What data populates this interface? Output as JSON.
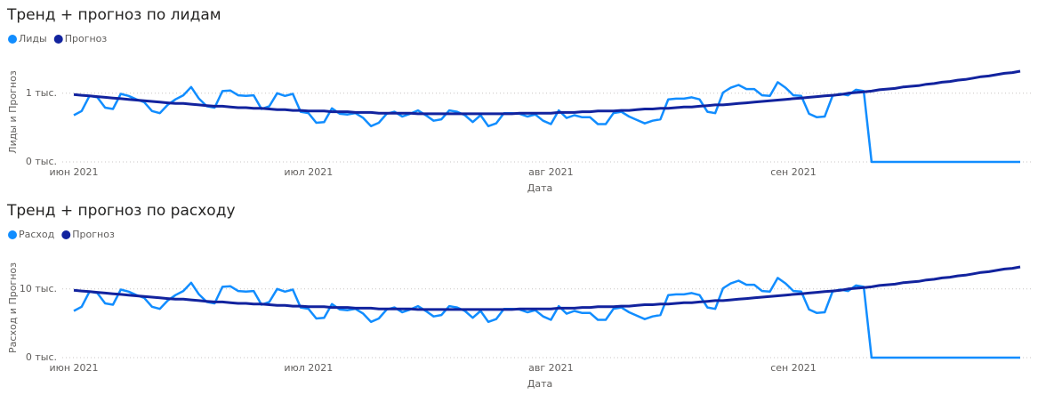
{
  "chart_data": [
    {
      "type": "line",
      "title": "Тренд + прогноз по лидам",
      "xlabel": "Дата",
      "ylabel": "Лиды и Прогноз",
      "categories": [
        "июн 2021",
        null,
        null,
        null,
        null,
        null,
        null,
        null,
        null,
        null,
        null,
        null,
        null,
        null,
        null,
        null,
        null,
        null,
        null,
        null,
        null,
        null,
        null,
        null,
        null,
        null,
        null,
        null,
        null,
        null,
        "июл 2021",
        null,
        null,
        null,
        null,
        null,
        null,
        null,
        null,
        null,
        null,
        null,
        null,
        null,
        null,
        null,
        null,
        null,
        null,
        null,
        null,
        null,
        null,
        null,
        null,
        null,
        null,
        null,
        null,
        null,
        null,
        "авг 2021",
        null,
        null,
        null,
        null,
        null,
        null,
        null,
        null,
        null,
        null,
        null,
        null,
        null,
        null,
        null,
        null,
        null,
        null,
        null,
        null,
        null,
        null,
        null,
        null,
        null,
        null,
        null,
        null,
        null,
        null,
        "сен 2021",
        null,
        null,
        null,
        null,
        null,
        null,
        null,
        null,
        null,
        null,
        null,
        null,
        null,
        null,
        null,
        null,
        null,
        null,
        null,
        null,
        null,
        null,
        null,
        null,
        null,
        null,
        null,
        null,
        null
      ],
      "series": [
        {
          "name": "Лиды",
          "color": "#118DFF",
          "values": [
            0.68,
            0.74,
            0.96,
            0.94,
            0.79,
            0.77,
            0.99,
            0.96,
            0.91,
            0.87,
            0.74,
            0.71,
            0.83,
            0.91,
            0.97,
            1.09,
            0.92,
            0.81,
            0.79,
            1.03,
            1.04,
            0.97,
            0.96,
            0.97,
            0.77,
            0.81,
            1,
            0.96,
            0.99,
            0.73,
            0.71,
            0.57,
            0.58,
            0.78,
            0.7,
            0.69,
            0.71,
            0.64,
            0.52,
            0.57,
            0.7,
            0.73,
            0.66,
            0.7,
            0.75,
            0.68,
            0.6,
            0.62,
            0.75,
            0.73,
            0.68,
            0.58,
            0.68,
            0.52,
            0.56,
            0.71,
            0.71,
            0.7,
            0.66,
            0.69,
            0.6,
            0.55,
            0.75,
            0.64,
            0.68,
            0.65,
            0.65,
            0.55,
            0.55,
            0.71,
            0.73,
            0.66,
            0.61,
            0.56,
            0.6,
            0.62,
            0.91,
            0.92,
            0.92,
            0.94,
            0.91,
            0.73,
            0.71,
            1.01,
            1.08,
            1.12,
            1.06,
            1.06,
            0.97,
            0.96,
            1.16,
            1.08,
            0.97,
            0.96,
            0.7,
            0.65,
            0.66,
            0.96,
            0.99,
            0.97,
            1.05,
            1.03,
            0,
            0,
            0,
            0,
            0,
            0,
            0,
            0,
            0,
            0,
            0,
            0,
            0,
            0,
            0,
            0,
            0,
            0,
            0,
            0
          ]
        },
        {
          "name": "Прогноз",
          "color": "#12239E",
          "values": [
            0.98,
            0.97,
            0.96,
            0.95,
            0.94,
            0.93,
            0.92,
            0.91,
            0.9,
            0.89,
            0.88,
            0.87,
            0.86,
            0.85,
            0.85,
            0.84,
            0.83,
            0.82,
            0.81,
            0.81,
            0.8,
            0.79,
            0.79,
            0.78,
            0.78,
            0.77,
            0.76,
            0.76,
            0.75,
            0.75,
            0.74,
            0.74,
            0.74,
            0.73,
            0.73,
            0.73,
            0.72,
            0.72,
            0.72,
            0.71,
            0.71,
            0.71,
            0.71,
            0.71,
            0.7,
            0.7,
            0.7,
            0.7,
            0.7,
            0.7,
            0.7,
            0.7,
            0.7,
            0.7,
            0.7,
            0.7,
            0.7,
            0.71,
            0.71,
            0.71,
            0.71,
            0.71,
            0.72,
            0.72,
            0.72,
            0.73,
            0.73,
            0.74,
            0.74,
            0.74,
            0.75,
            0.75,
            0.76,
            0.77,
            0.77,
            0.78,
            0.78,
            0.79,
            0.8,
            0.8,
            0.81,
            0.82,
            0.83,
            0.83,
            0.84,
            0.85,
            0.86,
            0.87,
            0.88,
            0.89,
            0.9,
            0.91,
            0.92,
            0.93,
            0.94,
            0.95,
            0.96,
            0.97,
            0.98,
            1,
            1.01,
            1.02,
            1.03,
            1.05,
            1.06,
            1.07,
            1.09,
            1.1,
            1.11,
            1.13,
            1.14,
            1.16,
            1.17,
            1.19,
            1.2,
            1.22,
            1.24,
            1.25,
            1.27,
            1.29,
            1.3,
            1.32
          ]
        }
      ],
      "ylim": [
        0,
        1.45
      ],
      "yticks": [
        {
          "value": 0,
          "label": "0 тыс."
        },
        {
          "value": 1,
          "label": "1 тыс."
        }
      ],
      "grid": true
    },
    {
      "type": "line",
      "title": "Тренд + прогноз по расходу",
      "xlabel": "Дата",
      "ylabel": "Расход и Прогноз",
      "categories": [
        "июн 2021",
        null,
        null,
        null,
        null,
        null,
        null,
        null,
        null,
        null,
        null,
        null,
        null,
        null,
        null,
        null,
        null,
        null,
        null,
        null,
        null,
        null,
        null,
        null,
        null,
        null,
        null,
        null,
        null,
        null,
        "июл 2021",
        null,
        null,
        null,
        null,
        null,
        null,
        null,
        null,
        null,
        null,
        null,
        null,
        null,
        null,
        null,
        null,
        null,
        null,
        null,
        null,
        null,
        null,
        null,
        null,
        null,
        null,
        null,
        null,
        null,
        null,
        "авг 2021",
        null,
        null,
        null,
        null,
        null,
        null,
        null,
        null,
        null,
        null,
        null,
        null,
        null,
        null,
        null,
        null,
        null,
        null,
        null,
        null,
        null,
        null,
        null,
        null,
        null,
        null,
        null,
        null,
        null,
        null,
        "сен 2021",
        null,
        null,
        null,
        null,
        null,
        null,
        null,
        null,
        null,
        null,
        null,
        null,
        null,
        null,
        null,
        null,
        null,
        null,
        null,
        null,
        null,
        null,
        null,
        null,
        null,
        null,
        null,
        null,
        null
      ],
      "series": [
        {
          "name": "Расход",
          "color": "#118DFF",
          "values": [
            6.8,
            7.4,
            9.6,
            9.4,
            7.9,
            7.7,
            9.9,
            9.6,
            9.1,
            8.7,
            7.4,
            7.1,
            8.3,
            9.1,
            9.7,
            10.9,
            9.2,
            8.1,
            7.9,
            10.3,
            10.4,
            9.7,
            9.6,
            9.7,
            7.7,
            8.1,
            10,
            9.6,
            9.9,
            7.3,
            7.1,
            5.7,
            5.8,
            7.8,
            7,
            6.9,
            7.1,
            6.4,
            5.2,
            5.7,
            7,
            7.3,
            6.6,
            7,
            7.5,
            6.8,
            6,
            6.2,
            7.5,
            7.3,
            6.8,
            5.8,
            6.8,
            5.2,
            5.6,
            7.1,
            7.1,
            7,
            6.6,
            6.9,
            6,
            5.5,
            7.5,
            6.4,
            6.8,
            6.5,
            6.5,
            5.5,
            5.5,
            7.1,
            7.3,
            6.6,
            6.1,
            5.6,
            6,
            6.2,
            9.1,
            9.2,
            9.2,
            9.4,
            9.1,
            7.3,
            7.1,
            10.1,
            10.8,
            11.2,
            10.6,
            10.6,
            9.7,
            9.6,
            11.6,
            10.8,
            9.7,
            9.6,
            7,
            6.5,
            6.6,
            9.6,
            9.9,
            9.7,
            10.5,
            10.3,
            0,
            0,
            0,
            0,
            0,
            0,
            0,
            0,
            0,
            0,
            0,
            0,
            0,
            0,
            0,
            0,
            0,
            0,
            0,
            0
          ]
        },
        {
          "name": "Прогноз",
          "color": "#12239E",
          "values": [
            9.8,
            9.7,
            9.6,
            9.5,
            9.4,
            9.3,
            9.2,
            9.1,
            9,
            8.9,
            8.8,
            8.7,
            8.6,
            8.5,
            8.5,
            8.4,
            8.3,
            8.2,
            8.1,
            8.1,
            8,
            7.9,
            7.9,
            7.8,
            7.8,
            7.7,
            7.6,
            7.6,
            7.5,
            7.5,
            7.4,
            7.4,
            7.4,
            7.3,
            7.3,
            7.3,
            7.2,
            7.2,
            7.2,
            7.1,
            7.1,
            7.1,
            7.1,
            7.1,
            7,
            7,
            7,
            7,
            7,
            7,
            7,
            7,
            7,
            7,
            7,
            7,
            7,
            7.1,
            7.1,
            7.1,
            7.1,
            7.1,
            7.2,
            7.2,
            7.2,
            7.3,
            7.3,
            7.4,
            7.4,
            7.4,
            7.5,
            7.5,
            7.6,
            7.7,
            7.7,
            7.8,
            7.8,
            7.9,
            8,
            8,
            8.1,
            8.2,
            8.3,
            8.3,
            8.4,
            8.5,
            8.6,
            8.7,
            8.8,
            8.9,
            9,
            9.1,
            9.2,
            9.3,
            9.4,
            9.5,
            9.6,
            9.7,
            9.8,
            10,
            10.1,
            10.2,
            10.3,
            10.5,
            10.6,
            10.7,
            10.9,
            11,
            11.1,
            11.3,
            11.4,
            11.6,
            11.7,
            11.9,
            12,
            12.2,
            12.4,
            12.5,
            12.7,
            12.9,
            13,
            13.2
          ]
        }
      ],
      "ylim": [
        0,
        14.5
      ],
      "yticks": [
        {
          "value": 0,
          "label": "0 тыс."
        },
        {
          "value": 10,
          "label": "10 тыс."
        }
      ],
      "grid": true
    }
  ]
}
